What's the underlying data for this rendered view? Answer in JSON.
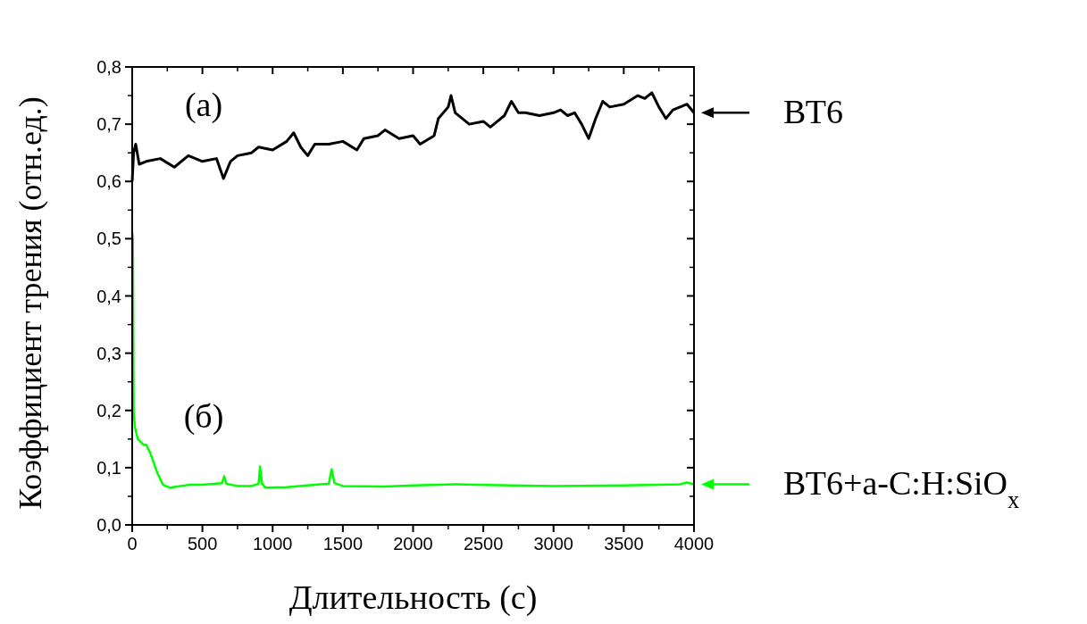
{
  "chart_data": {
    "type": "line",
    "xlabel": "Длительность (с)",
    "ylabel": "Коэффициент трения (отн.ед.)",
    "annotations": [
      "(а)",
      "(б)"
    ],
    "xlim": [
      0,
      4000
    ],
    "xticks": [
      0,
      500,
      1000,
      1500,
      2000,
      2500,
      3000,
      3500,
      4000
    ],
    "ylim": [
      0,
      0.8
    ],
    "yticks": [
      {
        "value": 0,
        "label": "0,0"
      },
      {
        "value": 0.1,
        "label": "0,1"
      },
      {
        "value": 0.2,
        "label": "0,2"
      },
      {
        "value": 0.3,
        "label": "0,3"
      },
      {
        "value": 0.4,
        "label": "0,4"
      },
      {
        "value": 0.5,
        "label": "0,5"
      },
      {
        "value": 0.6,
        "label": "0,6"
      },
      {
        "value": 0.7,
        "label": "0,7"
      },
      {
        "value": 0.8,
        "label": "0,8"
      }
    ],
    "grid": false,
    "legend": "right",
    "marker": "none",
    "line_style": "solid",
    "series": [
      {
        "name": "ВТ6",
        "color": "#000000",
        "x": [
          0,
          10,
          25,
          50,
          100,
          200,
          300,
          400,
          500,
          600,
          650,
          700,
          750,
          850,
          900,
          1000,
          1100,
          1150,
          1200,
          1250,
          1300,
          1400,
          1500,
          1600,
          1650,
          1750,
          1800,
          1900,
          2000,
          2050,
          2150,
          2180,
          2250,
          2270,
          2300,
          2400,
          2500,
          2550,
          2650,
          2700,
          2750,
          2800,
          2900,
          3000,
          3050,
          3100,
          3150,
          3200,
          3250,
          3300,
          3350,
          3400,
          3500,
          3600,
          3650,
          3700,
          3750,
          3800,
          3850,
          3900,
          3950,
          4000
        ],
        "values": [
          0.6,
          0.65,
          0.665,
          0.63,
          0.635,
          0.64,
          0.625,
          0.645,
          0.635,
          0.64,
          0.605,
          0.635,
          0.645,
          0.65,
          0.66,
          0.655,
          0.67,
          0.685,
          0.66,
          0.645,
          0.665,
          0.665,
          0.67,
          0.655,
          0.675,
          0.68,
          0.69,
          0.675,
          0.68,
          0.665,
          0.68,
          0.71,
          0.73,
          0.75,
          0.72,
          0.7,
          0.705,
          0.695,
          0.715,
          0.74,
          0.72,
          0.72,
          0.715,
          0.72,
          0.725,
          0.715,
          0.72,
          0.7,
          0.675,
          0.71,
          0.74,
          0.73,
          0.735,
          0.75,
          0.745,
          0.755,
          0.73,
          0.71,
          0.725,
          0.73,
          0.735,
          0.72
        ]
      },
      {
        "name": "ВТ6+a-C:H:SiO$_{x}$",
        "color": "#00ff00",
        "x": [
          0,
          5,
          10,
          20,
          40,
          80,
          100,
          130,
          180,
          220,
          270,
          400,
          500,
          600,
          640,
          655,
          670,
          750,
          850,
          900,
          910,
          925,
          950,
          1100,
          1300,
          1400,
          1420,
          1440,
          1500,
          1800,
          2000,
          2300,
          2700,
          3000,
          3500,
          3900,
          3950,
          4000
        ],
        "values": [
          0.51,
          0.5,
          0.2,
          0.17,
          0.15,
          0.14,
          0.14,
          0.125,
          0.09,
          0.07,
          0.065,
          0.07,
          0.07,
          0.072,
          0.073,
          0.085,
          0.072,
          0.068,
          0.068,
          0.072,
          0.102,
          0.072,
          0.065,
          0.066,
          0.07,
          0.072,
          0.097,
          0.073,
          0.068,
          0.067,
          0.069,
          0.071,
          0.069,
          0.068,
          0.069,
          0.071,
          0.074,
          0.071
        ]
      }
    ]
  }
}
